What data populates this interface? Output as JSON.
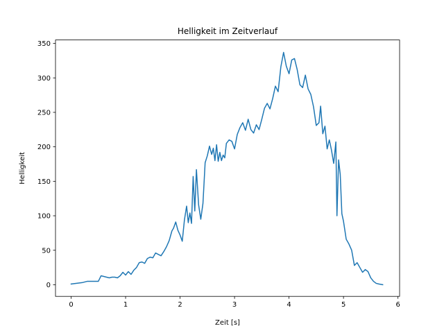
{
  "chart_data": {
    "type": "line",
    "title": "Helligkeit im Zeitverlauf",
    "xlabel": "Zeit [s]",
    "ylabel": "Helligkeit",
    "xlim": [
      -0.287,
      6.03
    ],
    "ylim": [
      -16.9,
      355
    ],
    "xticks": [
      0,
      1,
      2,
      3,
      4,
      5,
      6
    ],
    "yticks": [
      0,
      50,
      100,
      150,
      200,
      250,
      300,
      350
    ],
    "grid": false,
    "legend": "none",
    "series": [
      {
        "color": "#1f77b4",
        "x": [
          0,
          0.1,
          0.2,
          0.3,
          0.35,
          0.4,
          0.45,
          0.5,
          0.55,
          0.6,
          0.65,
          0.7,
          0.75,
          0.8,
          0.85,
          0.9,
          0.95,
          1.0,
          1.05,
          1.1,
          1.15,
          1.2,
          1.25,
          1.3,
          1.35,
          1.4,
          1.45,
          1.5,
          1.55,
          1.6,
          1.65,
          1.7,
          1.75,
          1.8,
          1.85,
          1.88,
          1.92,
          1.96,
          2.0,
          2.04,
          2.08,
          2.12,
          2.15,
          2.18,
          2.21,
          2.24,
          2.27,
          2.3,
          2.34,
          2.38,
          2.42,
          2.46,
          2.5,
          2.54,
          2.58,
          2.61,
          2.64,
          2.67,
          2.7,
          2.73,
          2.76,
          2.79,
          2.82,
          2.85,
          2.9,
          2.95,
          3.0,
          3.05,
          3.1,
          3.15,
          3.2,
          3.25,
          3.3,
          3.35,
          3.4,
          3.45,
          3.5,
          3.55,
          3.6,
          3.65,
          3.7,
          3.75,
          3.8,
          3.85,
          3.9,
          3.95,
          4.0,
          4.05,
          4.1,
          4.15,
          4.2,
          4.25,
          4.3,
          4.35,
          4.4,
          4.45,
          4.5,
          4.55,
          4.58,
          4.62,
          4.66,
          4.7,
          4.74,
          4.78,
          4.82,
          4.86,
          4.88,
          4.91,
          4.94,
          4.97,
          5.0,
          5.05,
          5.1,
          5.15,
          5.2,
          5.25,
          5.3,
          5.35,
          5.4,
          5.45,
          5.5,
          5.55,
          5.6,
          5.65,
          5.72
        ],
        "y": [
          1,
          2,
          3,
          5,
          5,
          5,
          5,
          5,
          13,
          12,
          11,
          10,
          11,
          11,
          10,
          13,
          18,
          14,
          19,
          15,
          21,
          25,
          32,
          33,
          31,
          38,
          40,
          39,
          46,
          44,
          42,
          48,
          55,
          64,
          78,
          82,
          91,
          79,
          72,
          63,
          94,
          114,
          90,
          104,
          89,
          157,
          107,
          167,
          116,
          95,
          118,
          177,
          187,
          201,
          189,
          198,
          180,
          203,
          179,
          192,
          180,
          188,
          184,
          205,
          210,
          208,
          197,
          218,
          228,
          235,
          224,
          240,
          225,
          220,
          232,
          225,
          240,
          256,
          263,
          255,
          270,
          288,
          280,
          316,
          337,
          317,
          306,
          326,
          328,
          312,
          290,
          286,
          304,
          284,
          276,
          258,
          231,
          235,
          259,
          219,
          230,
          197,
          210,
          195,
          176,
          207,
          100,
          181,
          160,
          103,
          92,
          66,
          59,
          50,
          28,
          32,
          25,
          18,
          22,
          19,
          10,
          5,
          2,
          1,
          0
        ]
      }
    ]
  }
}
